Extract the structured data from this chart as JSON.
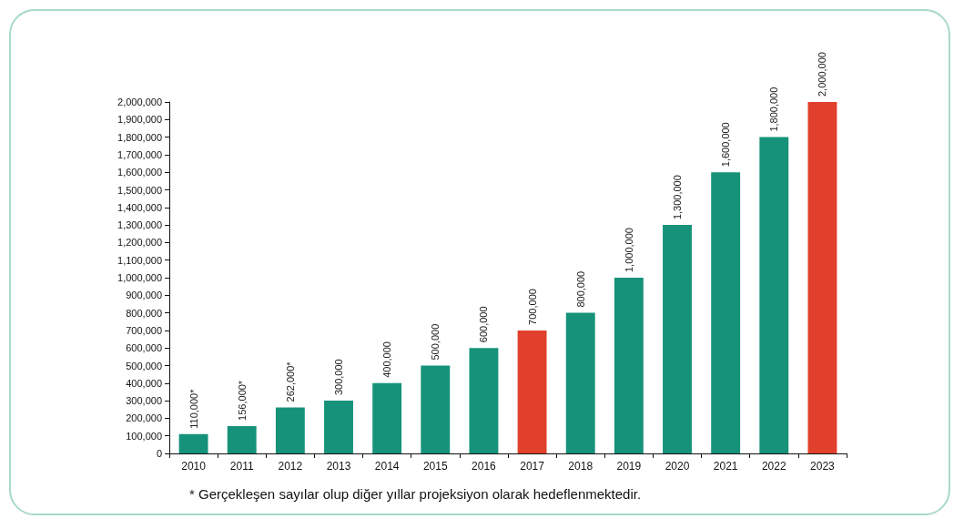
{
  "chart_data": {
    "type": "bar",
    "categories": [
      "2010",
      "2011",
      "2012",
      "2013",
      "2014",
      "2015",
      "2016",
      "2017",
      "2018",
      "2019",
      "2020",
      "2021",
      "2022",
      "2023"
    ],
    "values": [
      110000,
      156000,
      262000,
      300000,
      400000,
      500000,
      600000,
      700000,
      800000,
      1000000,
      1300000,
      1600000,
      1800000,
      2000000
    ],
    "value_labels": [
      "110,000*",
      "156,000*",
      "262,000*",
      "300,000",
      "400,000",
      "500,000",
      "600,000",
      "700,000",
      "800,000",
      "1,000,000",
      "1,300,000",
      "1,600,000",
      "1,800,000",
      "2,000,000"
    ],
    "colors": [
      "#16927a",
      "#16927a",
      "#16927a",
      "#16927a",
      "#16927a",
      "#16927a",
      "#16927a",
      "#e0402c",
      "#16927a",
      "#16927a",
      "#16927a",
      "#16927a",
      "#16927a",
      "#e0402c"
    ],
    "ylim": [
      0,
      2000000
    ],
    "yticks": [
      0,
      {
        "value": 100000,
        "label": "100,000"
      },
      {
        "value": 200000,
        "label": "200,000"
      },
      {
        "value": 300000,
        "label": "300,000"
      },
      {
        "value": 400000,
        "label": "400,000"
      },
      {
        "value": 500000,
        "label": "500,000"
      },
      {
        "value": 600000,
        "label": "600,000"
      },
      {
        "value": 700000,
        "label": "700,000"
      },
      {
        "value": 800000,
        "label": "800,000"
      },
      {
        "value": 900000,
        "label": "900,000"
      },
      {
        "value": 1000000,
        "label": "1,000,000"
      },
      {
        "value": 1100000,
        "label": "1,100,000"
      },
      {
        "value": 1200000,
        "label": "1,200,000"
      },
      {
        "value": 1300000,
        "label": "1,300,000"
      },
      {
        "value": 1400000,
        "label": "1,400,000"
      },
      {
        "value": 1500000,
        "label": "1,500,000"
      },
      {
        "value": 1600000,
        "label": "1,600,000"
      },
      {
        "value": 1700000,
        "label": "1,700,000"
      },
      {
        "value": 1800000,
        "label": "1,800,000"
      },
      {
        "value": 1900000,
        "label": "1,900,000"
      },
      {
        "value": 2000000,
        "label": "2,000,000"
      }
    ],
    "grid": false,
    "annotations": [
      "* Gerçekleşen sayılar olup diğer yıllar projeksiyon olarak hedeflenmektedir."
    ]
  }
}
